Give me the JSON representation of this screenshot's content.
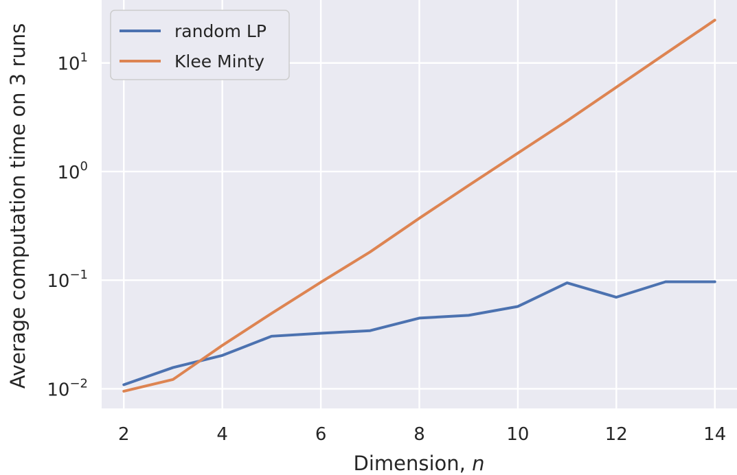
{
  "chart_data": {
    "type": "line",
    "xlabel": "Dimension, ",
    "xlabel_var": "n",
    "ylabel": "Average computation time on 3 runs",
    "x": [
      2,
      3,
      4,
      5,
      6,
      7,
      8,
      9,
      10,
      11,
      12,
      13,
      14
    ],
    "xlim": [
      1.55,
      14.45
    ],
    "ylim": [
      0.0066,
      38
    ],
    "y_scale": "log",
    "grid": true,
    "legend_position": "top-left",
    "x_ticks": [
      "2",
      "4",
      "6",
      "8",
      "10",
      "12",
      "14"
    ],
    "y_ticks": [
      {
        "base": "10",
        "exp": "−2",
        "value": 0.01
      },
      {
        "base": "10",
        "exp": "−1",
        "value": 0.1
      },
      {
        "base": "10",
        "exp": "0",
        "value": 1
      },
      {
        "base": "10",
        "exp": "1",
        "value": 10
      }
    ],
    "series": [
      {
        "name": "random LP",
        "color": "#4c72b0",
        "values": [
          0.0109,
          0.0157,
          0.0203,
          0.0305,
          0.0325,
          0.0343,
          0.0448,
          0.0475,
          0.0573,
          0.0945,
          0.0697,
          0.0967,
          0.0967
        ]
      },
      {
        "name": "Klee Minty",
        "color": "#dd8452",
        "values": [
          0.0095,
          0.0122,
          0.0251,
          0.0495,
          0.0958,
          0.182,
          0.372,
          0.745,
          1.48,
          2.93,
          5.98,
          12.2,
          24.8
        ]
      }
    ]
  }
}
